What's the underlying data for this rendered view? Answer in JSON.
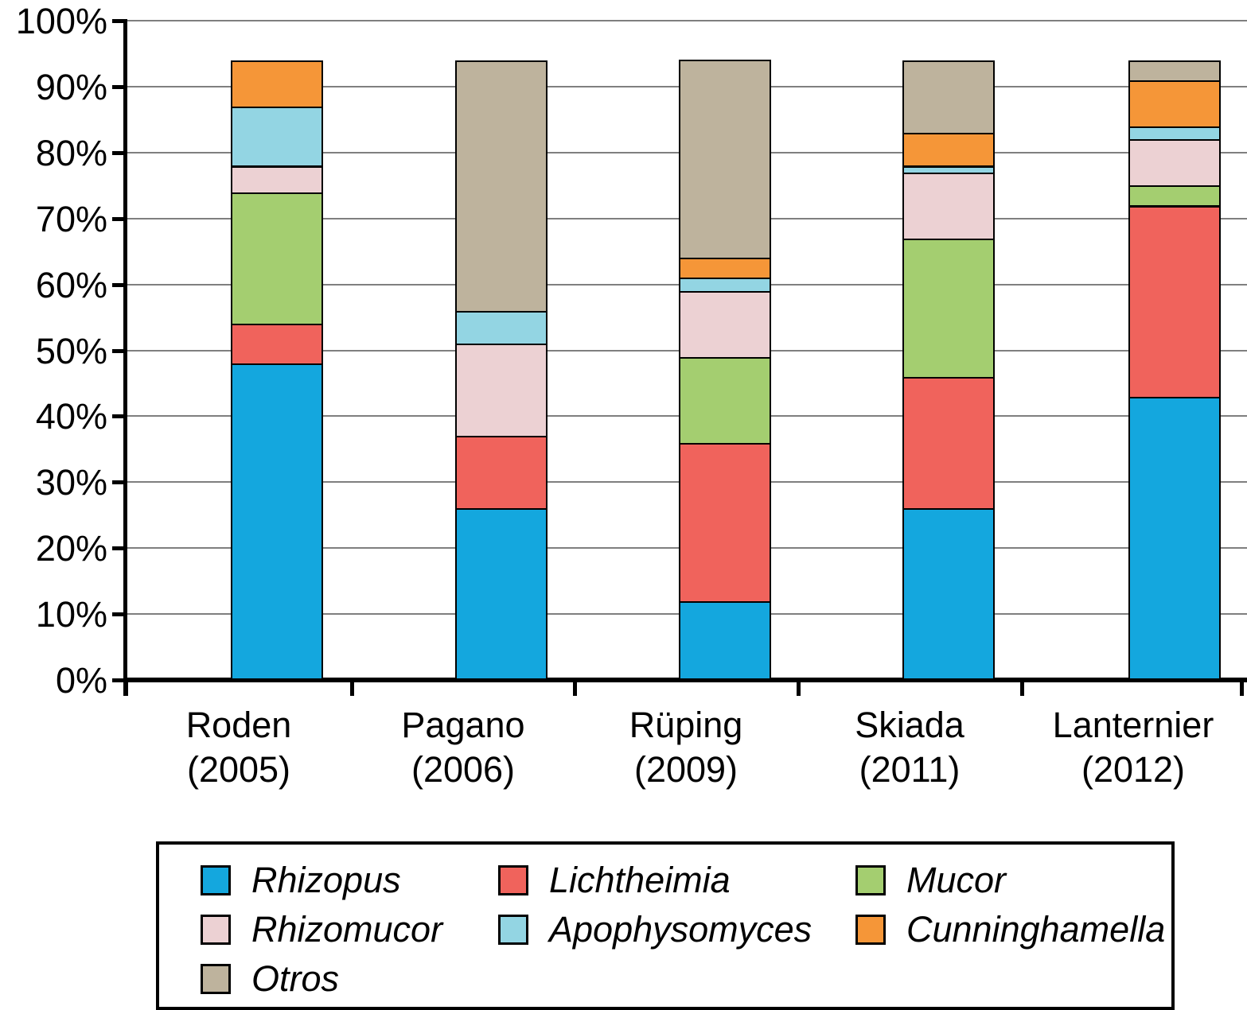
{
  "chart_data": {
    "type": "bar",
    "stacked": true,
    "unit": "%",
    "categories": [
      {
        "label_line1": "Roden",
        "label_line2": "(2005)"
      },
      {
        "label_line1": "Pagano",
        "label_line2": "(2006)"
      },
      {
        "label_line1": "Rüping",
        "label_line2": "(2009)"
      },
      {
        "label_line1": "Skiada",
        "label_line2": "(2011)"
      },
      {
        "label_line1": "Lanternier",
        "label_line2": "(2012)"
      }
    ],
    "series": [
      {
        "name": "Rhizopus",
        "color": "#14A7DE",
        "values": [
          48,
          26,
          12,
          26,
          43
        ]
      },
      {
        "name": "Lichtheimia",
        "color": "#F0635C",
        "values": [
          6,
          11,
          24,
          20,
          29
        ]
      },
      {
        "name": "Mucor",
        "color": "#A4CE70",
        "values": [
          20,
          0,
          13,
          21,
          3
        ]
      },
      {
        "name": "Rhizomucor",
        "color": "#ECD1D3",
        "values": [
          4,
          14,
          10,
          10,
          7
        ]
      },
      {
        "name": "Apophysomyces",
        "color": "#93D5E3",
        "values": [
          9,
          5,
          2,
          1,
          2
        ]
      },
      {
        "name": "Cunninghamella",
        "color": "#F59638",
        "values": [
          7,
          0,
          3,
          5,
          7
        ]
      },
      {
        "name": "Otros",
        "color": "#BEB39D",
        "values": [
          0,
          38,
          30,
          11,
          3
        ]
      }
    ],
    "column_totals": [
      94,
      94,
      94,
      94,
      94
    ],
    "y_axis": {
      "min": 0,
      "max": 100,
      "tick_step": 10,
      "tick_labels": [
        "0%",
        "10%",
        "20%",
        "30%",
        "40%",
        "50%",
        "60%",
        "70%",
        "80%",
        "90%",
        "100%"
      ]
    },
    "legend": {
      "position": "bottom",
      "entries": [
        "Rhizopus",
        "Lichtheimia",
        "Mucor",
        "Rhizomucor",
        "Apophysomyces",
        "Cunninghamella",
        "Otros"
      ]
    },
    "grid": {
      "horizontal": true,
      "color": "#7f7f7f"
    }
  }
}
